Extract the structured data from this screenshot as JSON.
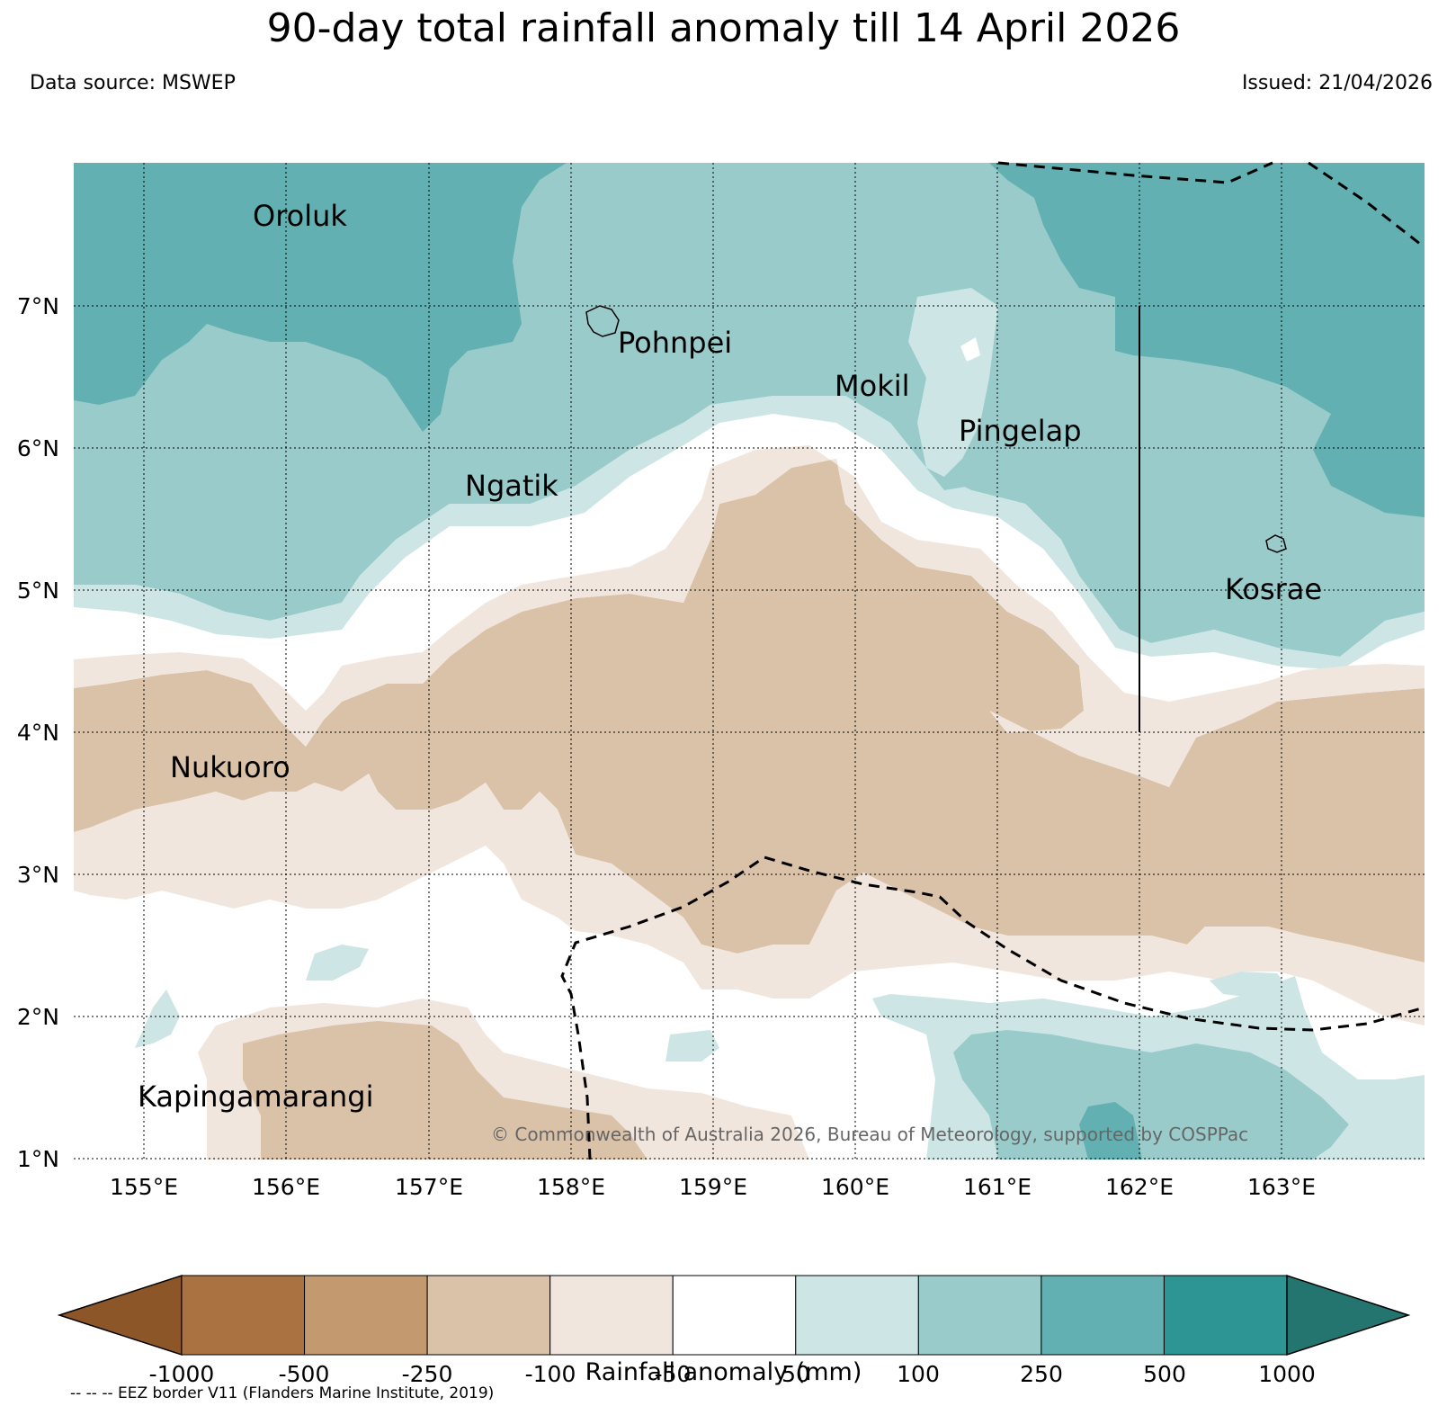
{
  "title": "90-day total rainfall anomaly till 14 April 2026",
  "data_source": "Data source: MSWEP",
  "issued": "Issued: 21/04/2026",
  "copyright": "© Commonwealth of Australia 2026, Bureau of Meteorology, supported by COSPPac",
  "map": {
    "lat_labels": [
      "7°N",
      "6°N",
      "5°N",
      "4°N",
      "3°N",
      "2°N",
      "1°N"
    ],
    "lon_labels": [
      "155°E",
      "156°E",
      "157°E",
      "158°E",
      "159°E",
      "160°E",
      "161°E",
      "162°E",
      "163°E"
    ],
    "places": [
      "Oroluk",
      "Pohnpei",
      "Mokil",
      "Pingelap",
      "Ngatik",
      "Kosrae",
      "Nukuoro",
      "Kapingamarangi"
    ]
  },
  "colorbar": {
    "label": "Rainfall anomaly (mm)",
    "ticks": [
      "-1000",
      "-500",
      "-250",
      "-100",
      "-50",
      "50",
      "100",
      "250",
      "500",
      "1000"
    ],
    "colors": [
      "#8c5628",
      "#aa7240",
      "#c39a70",
      "#dac2a9",
      "#f1e6dd",
      "#ffffff",
      "#cde6e5",
      "#9acbcb",
      "#62b0b1",
      "#2d9593",
      "#24746f"
    ]
  },
  "eez_note": "-- -- -- EEZ border V11 (Flanders Marine Institute, 2019)"
}
